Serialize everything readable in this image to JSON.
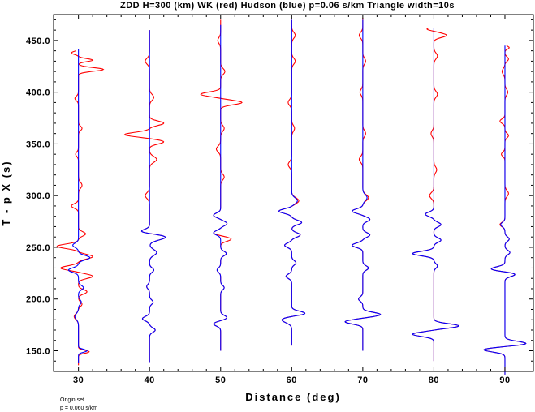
{
  "chart_data": {
    "type": "line",
    "title": "ZDD H=300 (km) WK (red) Hudson (blue) p=0.06 s/km Triangle width=10s",
    "xlabel": "Distance (deg)",
    "ylabel": "T - p X (s)",
    "xlim": [
      26.5,
      94.0
    ],
    "ylim": [
      130.0,
      475.0
    ],
    "x_ticks": [
      30,
      40,
      50,
      60,
      70,
      80,
      90
    ],
    "x_tick_labels": [
      "30",
      "40",
      "50",
      "60",
      "70",
      "80",
      "90"
    ],
    "y_ticks": [
      150,
      200,
      250,
      300,
      350,
      400,
      450
    ],
    "y_tick_labels": [
      "150.0",
      "200.0",
      "250.0",
      "300.0",
      "350.0",
      "400.0",
      "450.0"
    ],
    "grid": false,
    "series": [
      {
        "color": "#ff0000",
        "traces": [
          {
            "distance": 30,
            "t_start": 136,
            "t_end": 440,
            "wavelets": [
              [
                149,
                1.5,
                2
              ],
              [
                183,
                -0.6,
                4
              ],
              [
                195,
                0.5,
                3
              ],
              [
                207,
                1.2,
                3
              ],
              [
                222,
                2.0,
                3
              ],
              [
                230,
                -2.5,
                3
              ],
              [
                241,
                2.0,
                3
              ],
              [
                251,
                -3.0,
                3
              ],
              [
                263,
                1.0,
                3
              ],
              [
                290,
                -1.0,
                3
              ],
              [
                310,
                0.5,
                4
              ],
              [
                340,
                -0.4,
                3
              ],
              [
                365,
                0.5,
                3
              ],
              [
                394,
                -0.5,
                3
              ],
              [
                422,
                3.5,
                2.5
              ],
              [
                431,
                2.0,
                2
              ],
              [
                438,
                -1.0,
                2
              ]
            ]
          },
          {
            "distance": 40,
            "t_start": 139,
            "t_end": 460,
            "wavelets": [
              [
                170,
                0.8,
                3
              ],
              [
                181,
                -1.0,
                3
              ],
              [
                197,
                0.5,
                3
              ],
              [
                212,
                -0.4,
                3
              ],
              [
                228,
                0.6,
                3
              ],
              [
                245,
                1.0,
                4
              ],
              [
                260,
                2.3,
                4
              ],
              [
                265,
                -1.5,
                3
              ],
              [
                300,
                -0.6,
                4
              ],
              [
                335,
                1.0,
                4
              ],
              [
                352,
                2.0,
                3
              ],
              [
                359,
                -3.5,
                3
              ],
              [
                370,
                2.0,
                3
              ],
              [
                395,
                0.6,
                4
              ],
              [
                430,
                -0.6,
                4
              ]
            ]
          },
          {
            "distance": 50,
            "t_start": 150,
            "t_end": 470,
            "wavelets": [
              [
                176,
                -1.0,
                3
              ],
              [
                182,
                0.9,
                3
              ],
              [
                211,
                0.5,
                3
              ],
              [
                228,
                -0.5,
                3
              ],
              [
                244,
                0.8,
                3
              ],
              [
                258,
                1.5,
                3
              ],
              [
                264,
                -1.0,
                3
              ],
              [
                273,
                0.9,
                3
              ],
              [
                281,
                -1.0,
                3
              ],
              [
                318,
                0.5,
                4
              ],
              [
                345,
                -0.6,
                4
              ],
              [
                365,
                0.5,
                4
              ],
              [
                390,
                3.0,
                3
              ],
              [
                398,
                -2.8,
                3
              ],
              [
                420,
                0.6,
                4
              ],
              [
                450,
                -0.4,
                4
              ]
            ]
          },
          {
            "distance": 60,
            "t_start": 155,
            "t_end": 470,
            "wavelets": [
              [
                180,
                -1.4,
                4
              ],
              [
                186,
                2.0,
                3
              ],
              [
                222,
                -0.8,
                3
              ],
              [
                235,
                0.6,
                3
              ],
              [
                252,
                -1.0,
                3
              ],
              [
                262,
                1.2,
                3
              ],
              [
                274,
                1.4,
                3
              ],
              [
                285,
                -1.8,
                3
              ],
              [
                295,
                1.0,
                4
              ],
              [
                330,
                -0.5,
                4
              ],
              [
                365,
                0.4,
                4
              ],
              [
                390,
                -0.5,
                4
              ],
              [
                430,
                0.5,
                4
              ],
              [
                455,
                0.5,
                4
              ]
            ]
          },
          {
            "distance": 70,
            "t_start": 150,
            "t_end": 472,
            "wavelets": [
              [
                178,
                -2.5,
                3
              ],
              [
                185,
                2.5,
                3
              ],
              [
                200,
                -0.6,
                3
              ],
              [
                230,
                0.8,
                3
              ],
              [
                252,
                -1.5,
                3
              ],
              [
                262,
                1.0,
                3
              ],
              [
                277,
                1.0,
                3
              ],
              [
                285,
                -1.5,
                3
              ],
              [
                298,
                0.8,
                4
              ],
              [
                335,
                -0.5,
                4
              ],
              [
                360,
                0.4,
                4
              ],
              [
                400,
                -0.4,
                4
              ],
              [
                430,
                0.4,
                4
              ],
              [
                455,
                -0.5,
                4
              ]
            ]
          },
          {
            "distance": 80,
            "t_start": 140,
            "t_end": 462,
            "wavelets": [
              [
                166,
                -3.0,
                3
              ],
              [
                174,
                3.5,
                3
              ],
              [
                232,
                0.5,
                3
              ],
              [
                244,
                -3.0,
                3
              ],
              [
                257,
                1.0,
                3
              ],
              [
                272,
                1.0,
                3
              ],
              [
                282,
                -1.2,
                3
              ],
              [
                300,
                -0.6,
                4
              ],
              [
                325,
                0.4,
                4
              ],
              [
                360,
                -0.4,
                4
              ],
              [
                398,
                0.5,
                4
              ],
              [
                435,
                0.5,
                4
              ],
              [
                455,
                1.8,
                3
              ],
              [
                461,
                -1.0,
                2
              ]
            ]
          },
          {
            "distance": 90,
            "t_start": 127,
            "t_end": 445,
            "wavelets": [
              [
                151,
                -3.0,
                3
              ],
              [
                157,
                3.0,
                3
              ],
              [
                224,
                1.5,
                3
              ],
              [
                229,
                -2.0,
                3
              ],
              [
                245,
                0.7,
                3
              ],
              [
                258,
                0.6,
                3
              ],
              [
                272,
                -0.7,
                3
              ],
              [
                302,
                0.5,
                4
              ],
              [
                340,
                -0.5,
                3
              ],
              [
                358,
                0.5,
                3
              ],
              [
                372,
                -0.7,
                3
              ],
              [
                400,
                0.4,
                4
              ],
              [
                420,
                -0.4,
                4
              ],
              [
                432,
                0.5,
                3
              ],
              [
                443,
                0.6,
                2
              ]
            ]
          }
        ]
      },
      {
        "color": "#0000ff",
        "traces": [
          {
            "distance": 30,
            "t_start": 138,
            "t_end": 442,
            "wavelets": [
              [
                150,
                1.2,
                2
              ],
              [
                183,
                -0.5,
                4
              ],
              [
                197,
                0.4,
                3
              ],
              [
                211,
                0.7,
                3
              ],
              [
                228,
                -1.4,
                3
              ],
              [
                240,
                1.6,
                3
              ],
              [
                252,
                -0.8,
                3
              ]
            ]
          },
          {
            "distance": 40,
            "t_start": 139,
            "t_end": 460,
            "wavelets": [
              [
                170,
                0.8,
                3
              ],
              [
                181,
                -1.0,
                3
              ],
              [
                197,
                0.5,
                3
              ],
              [
                212,
                -0.4,
                3
              ],
              [
                228,
                0.6,
                3
              ],
              [
                245,
                1.0,
                4
              ],
              [
                260,
                2.3,
                4
              ],
              [
                265,
                -1.5,
                3
              ]
            ]
          },
          {
            "distance": 50,
            "t_start": 150,
            "t_end": 465,
            "wavelets": [
              [
                176,
                -1.0,
                3
              ],
              [
                182,
                0.9,
                3
              ],
              [
                211,
                0.5,
                3
              ],
              [
                228,
                -0.5,
                3
              ],
              [
                244,
                0.8,
                3
              ],
              [
                264,
                -1.0,
                3
              ],
              [
                273,
                0.9,
                3
              ],
              [
                281,
                -1.0,
                3
              ]
            ]
          },
          {
            "distance": 60,
            "t_start": 155,
            "t_end": 470,
            "wavelets": [
              [
                180,
                -1.4,
                4
              ],
              [
                186,
                2.0,
                3
              ],
              [
                222,
                -0.8,
                3
              ],
              [
                235,
                0.6,
                3
              ],
              [
                252,
                -1.0,
                3
              ],
              [
                262,
                1.2,
                3
              ],
              [
                274,
                1.4,
                3
              ],
              [
                285,
                -1.8,
                3
              ],
              [
                295,
                0.8,
                4
              ]
            ]
          },
          {
            "distance": 70,
            "t_start": 150,
            "t_end": 470,
            "wavelets": [
              [
                178,
                -2.5,
                3
              ],
              [
                185,
                2.5,
                3
              ],
              [
                200,
                -0.6,
                3
              ],
              [
                230,
                0.8,
                3
              ],
              [
                252,
                -1.5,
                3
              ],
              [
                262,
                1.0,
                3
              ],
              [
                277,
                1.0,
                3
              ],
              [
                285,
                -1.5,
                3
              ],
              [
                298,
                0.6,
                4
              ]
            ]
          },
          {
            "distance": 80,
            "t_start": 140,
            "t_end": 462,
            "wavelets": [
              [
                166,
                -3.0,
                3
              ],
              [
                174,
                3.5,
                3
              ],
              [
                232,
                0.5,
                3
              ],
              [
                244,
                -3.0,
                3
              ],
              [
                257,
                1.0,
                3
              ],
              [
                272,
                1.0,
                3
              ],
              [
                282,
                -1.2,
                3
              ]
            ]
          },
          {
            "distance": 90,
            "t_start": 127,
            "t_end": 445,
            "wavelets": [
              [
                151,
                -3.0,
                3
              ],
              [
                157,
                3.0,
                3
              ],
              [
                224,
                1.5,
                3
              ],
              [
                229,
                -2.0,
                3
              ],
              [
                245,
                0.7,
                3
              ],
              [
                258,
                0.6,
                3
              ],
              [
                272,
                -0.6,
                3
              ]
            ]
          }
        ]
      }
    ]
  },
  "footnote": {
    "line1": "Origin set",
    "line2": "p = 0.060 s/km"
  }
}
